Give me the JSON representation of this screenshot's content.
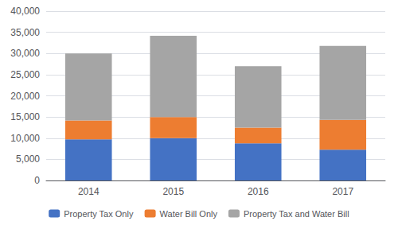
{
  "chart_data": {
    "type": "bar",
    "stacked": true,
    "categories": [
      "2014",
      "2015",
      "2016",
      "2017"
    ],
    "series": [
      {
        "name": "Property Tax Only",
        "color": "#4472C4",
        "values": [
          9700,
          10000,
          8800,
          7300
        ]
      },
      {
        "name": "Water Bill Only",
        "color": "#ED7D31",
        "values": [
          4500,
          5000,
          3700,
          7000
        ]
      },
      {
        "name": "Property Tax and Water Bill",
        "color": "#A5A5A5",
        "values": [
          15800,
          19200,
          14500,
          17500
        ]
      }
    ],
    "ylim": [
      0,
      40000
    ],
    "yticks": [
      0,
      {
        "value": 5000,
        "label": "5,000"
      },
      {
        "value": 10000,
        "label": "10,000"
      },
      {
        "value": 15000,
        "label": "15,000"
      },
      {
        "value": 20000,
        "label": "20,000"
      },
      {
        "value": 25000,
        "label": "25,000"
      },
      {
        "value": 30000,
        "label": "30,000"
      },
      {
        "value": 35000,
        "label": "35,000"
      },
      {
        "value": 40000,
        "label": "40,000"
      }
    ],
    "grid": true,
    "legend": "bottom"
  }
}
